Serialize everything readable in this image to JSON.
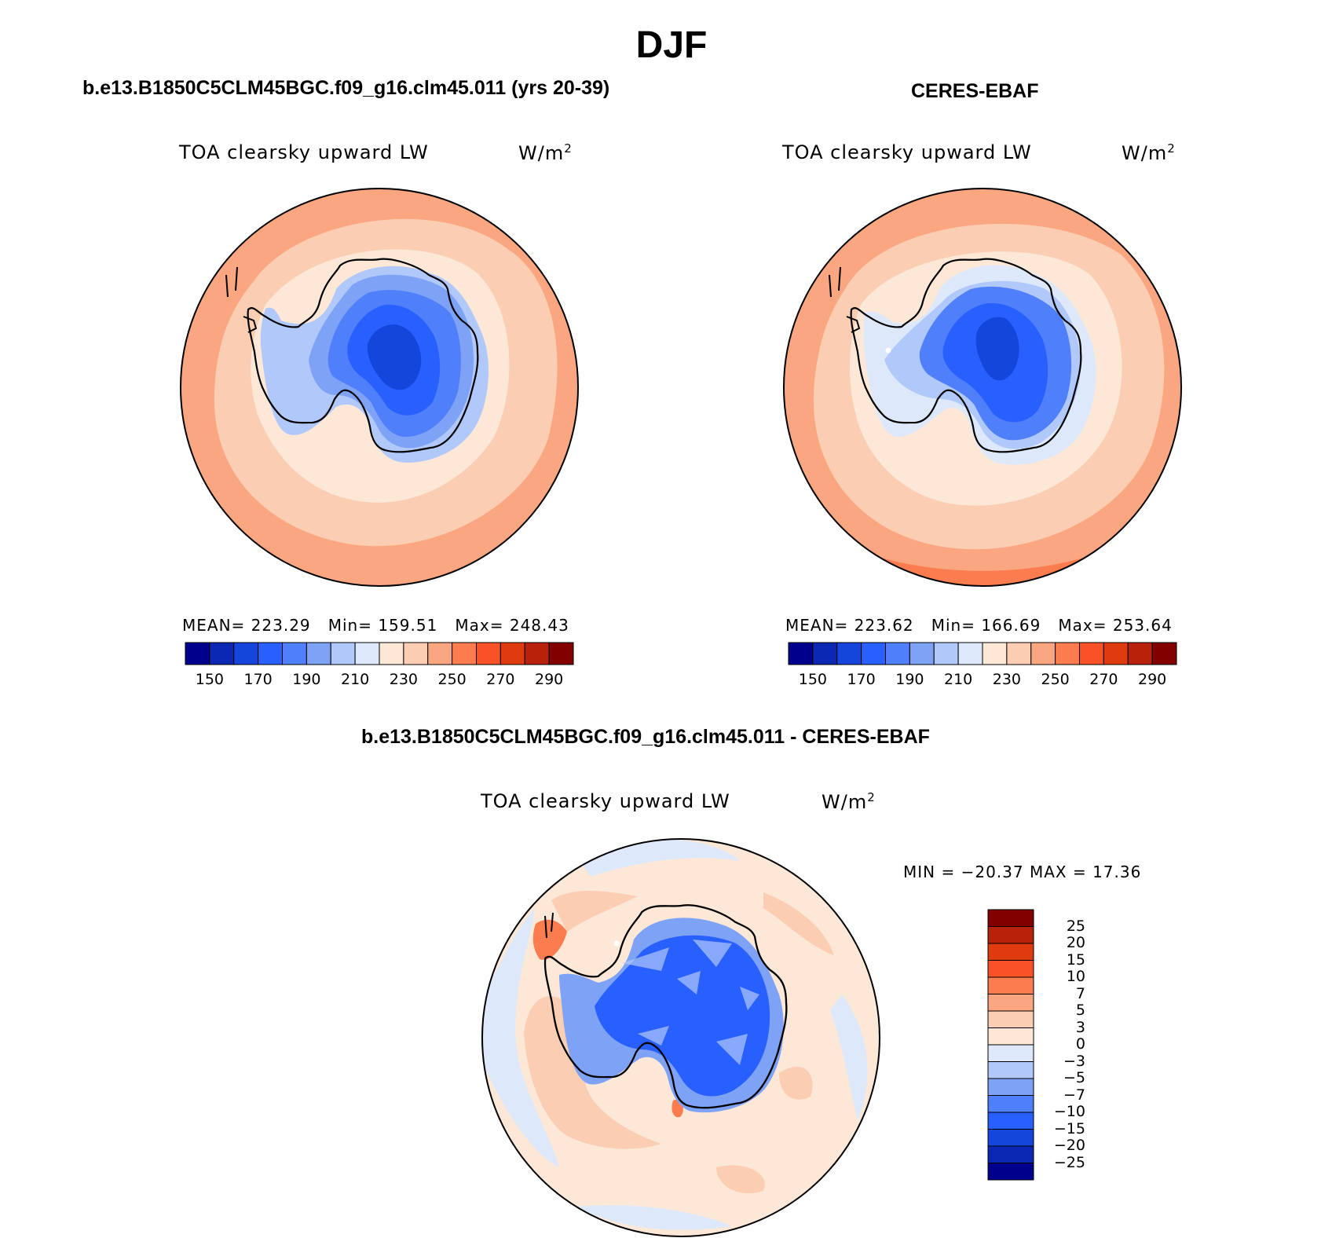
{
  "title": "DJF",
  "panels": [
    {
      "title": "b.e13.B1850C5CLM45BGC.f09_g16.clm45.011 (yrs 20-39)",
      "variable": "TOA clearsky upward LW",
      "units": "W/m",
      "units_sup": "2",
      "stats": {
        "mean_label": "MEAN=",
        "mean": "223.29",
        "min_label": "Min=",
        "min": "159.51",
        "max_label": "Max=",
        "max": "248.43"
      }
    },
    {
      "title": "CERES-EBAF",
      "variable": "TOA clearsky upward LW",
      "units": "W/m",
      "units_sup": "2",
      "stats": {
        "mean_label": "MEAN=",
        "mean": "223.62",
        "min_label": "Min=",
        "min": "166.69",
        "max_label": "Max=",
        "max": "253.64"
      }
    },
    {
      "title": "b.e13.B1850C5CLM45BGC.f09_g16.clm45.011 - CERES-EBAF",
      "variable": "TOA clearsky upward LW",
      "units": "W/m",
      "units_sup": "2",
      "minmax_text": "MIN = −20.37 MAX =   17.36"
    }
  ],
  "colorbar_abs": {
    "labels": [
      "150",
      "170",
      "190",
      "210",
      "230",
      "250",
      "270",
      "290"
    ],
    "colors": [
      "#00008c",
      "#0a28b4",
      "#1446dc",
      "#285fff",
      "#4f7ffb",
      "#7ea2f6",
      "#b0c8fa",
      "#dde9fb",
      "#fde8d8",
      "#fbcdb2",
      "#f9a681",
      "#fb7c4e",
      "#fa5228",
      "#e03b0f",
      "#b8220b",
      "#820000"
    ]
  },
  "colorbar_diff": {
    "labels": [
      "25",
      "20",
      "15",
      "10",
      "7",
      "5",
      "3",
      "0",
      "−3",
      "−5",
      "−7",
      "−10",
      "−15",
      "−20",
      "−25"
    ],
    "colors": [
      "#820000",
      "#b8220b",
      "#e03b0f",
      "#fa5228",
      "#fb7c4e",
      "#f9a681",
      "#fbcdb2",
      "#fde8d8",
      "#dde9fb",
      "#b0c8fa",
      "#7ea2f6",
      "#4f7ffb",
      "#285fff",
      "#1446dc",
      "#0a28b4",
      "#00008c"
    ]
  }
}
